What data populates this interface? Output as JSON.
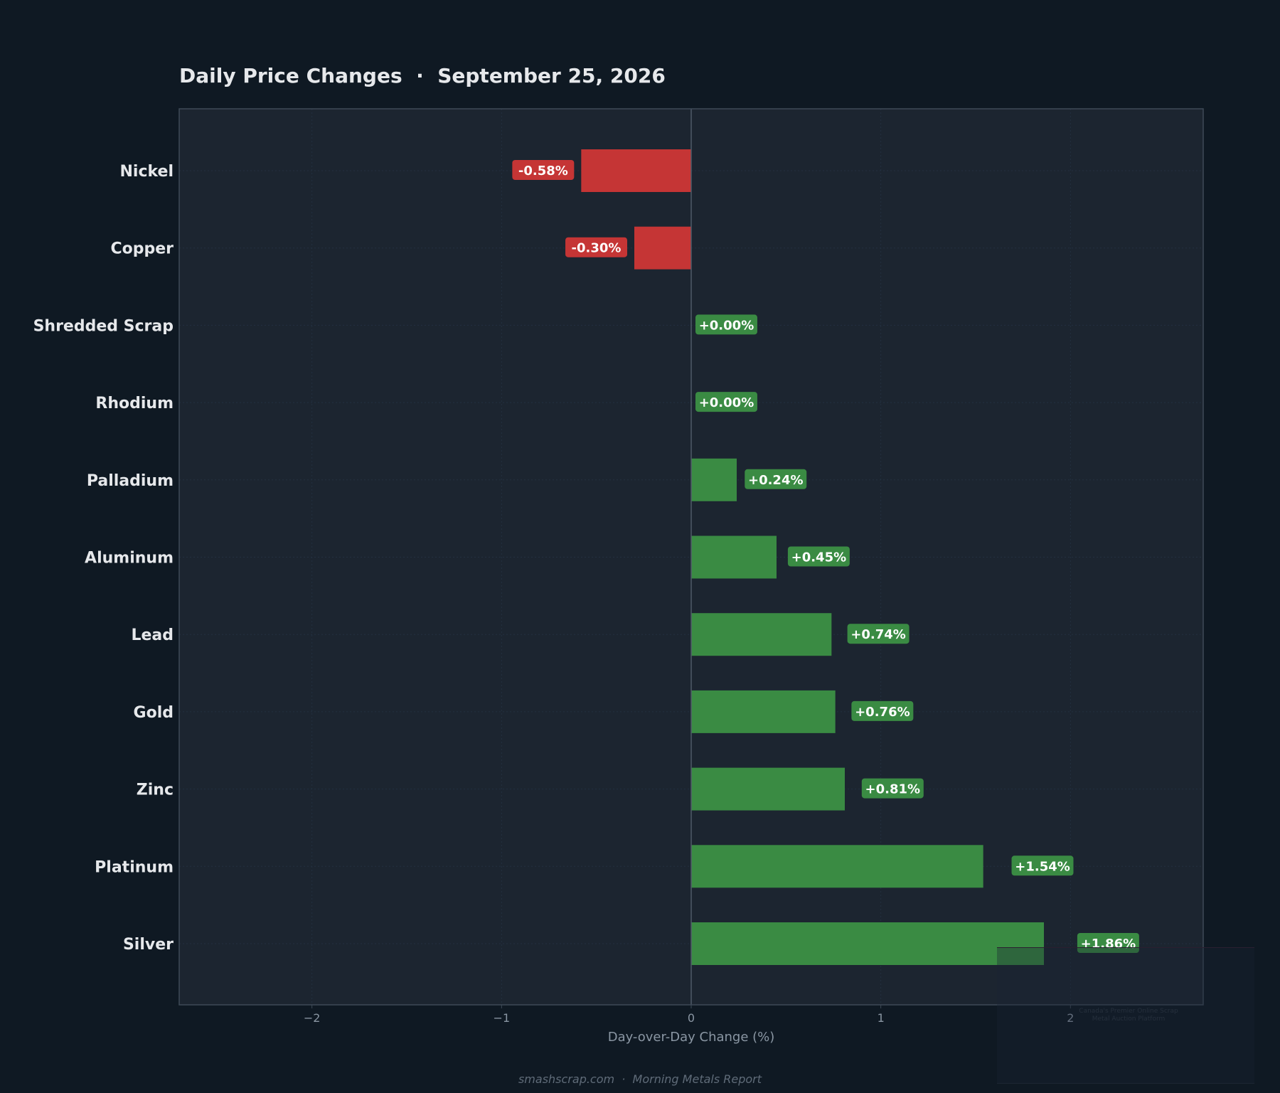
{
  "title": "Daily Price Changes  ·  September 25, 2026",
  "footer": "smashscrap.com  ·  Morning Metals Report",
  "watermark": {
    "tagline": "Canada's Premier Online Scrap Metal Auction Platform"
  },
  "colors": {
    "page_background": "#0f1923",
    "plot_background": "#1c2530",
    "positive": "#3a8b43",
    "negative": "#c53535",
    "axis_frame": "#3e4a57",
    "grid": "#233040",
    "text": "#e6e8eb",
    "muted_text": "#8a96a3"
  },
  "chart_data": {
    "type": "bar",
    "orientation": "horizontal",
    "categories": [
      "Nickel",
      "Copper",
      "Shredded Scrap",
      "Rhodium",
      "Palladium",
      "Aluminum",
      "Lead",
      "Gold",
      "Zinc",
      "Platinum",
      "Silver"
    ],
    "values": [
      -0.58,
      -0.3,
      0.0,
      0.0,
      0.24,
      0.45,
      0.74,
      0.76,
      0.81,
      1.54,
      1.86
    ],
    "data_labels": [
      "-0.58%",
      "-0.30%",
      "+0.00%",
      "+0.00%",
      "+0.24%",
      "+0.45%",
      "+0.74%",
      "+0.76%",
      "+0.81%",
      "+1.54%",
      "+1.86%"
    ],
    "xlabel": "Day-over-Day Change (%)",
    "ylabel": "",
    "xlim": [
      -2.7,
      2.7
    ],
    "xticks": [
      -2,
      -1,
      0,
      1,
      2
    ],
    "xtick_labels": [
      "−2",
      "−1",
      "0",
      "1",
      "2"
    ],
    "grid": true,
    "legend": false
  }
}
